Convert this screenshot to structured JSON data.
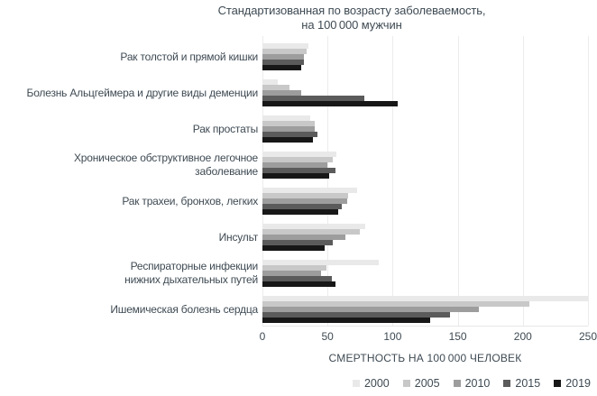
{
  "title": {
    "lines": [
      "Стандартизованная по возрасту заболеваемость,",
      "на 100 000 мужчин"
    ]
  },
  "colors": {
    "text": "#3e4a53",
    "grid": "#ececec"
  },
  "chart_data": {
    "type": "bar",
    "orientation": "horizontal",
    "title": "Стандартизованная по возрасту заболеваемость, на 100 000 мужчин",
    "categories": [
      "Рак толстой и прямой кишки",
      "Болезнь Альцгеймера и другие виды деменции",
      "Рак простаты",
      "Хроническое обструктивное легочное\nзаболевание",
      "Рак трахеи, бронхов, легких",
      "Инсульт",
      "Респираторные инфекции\nнижних дыхательных путей",
      "Ишемическая болезнь сердца"
    ],
    "series": [
      {
        "name": "2000",
        "color": "#e9e9e9",
        "values": [
          35,
          12,
          37,
          57,
          73,
          79,
          89,
          255
        ]
      },
      {
        "name": "2005",
        "color": "#c8c8c8",
        "values": [
          34,
          21,
          40,
          54,
          66,
          75,
          49,
          205
        ]
      },
      {
        "name": "2010",
        "color": "#9d9d9d",
        "values": [
          32,
          30,
          40,
          50,
          65,
          64,
          45,
          166
        ]
      },
      {
        "name": "2015",
        "color": "#5b5b5b",
        "values": [
          32,
          78,
          42,
          56,
          61,
          54,
          53,
          144
        ]
      },
      {
        "name": "2019",
        "color": "#171717",
        "values": [
          30,
          104,
          39,
          51,
          58,
          48,
          56,
          129
        ]
      }
    ],
    "xlabel": "СМЕРТНОСТЬ НА 100 000 ЧЕЛОВЕК",
    "xlim": [
      0,
      250
    ],
    "xticks": [
      0,
      50,
      100,
      150,
      200,
      250
    ],
    "grid": true,
    "legend_position": "bottom",
    "legend": [
      "2000",
      "2005",
      "2010",
      "2015",
      "2019"
    ]
  }
}
